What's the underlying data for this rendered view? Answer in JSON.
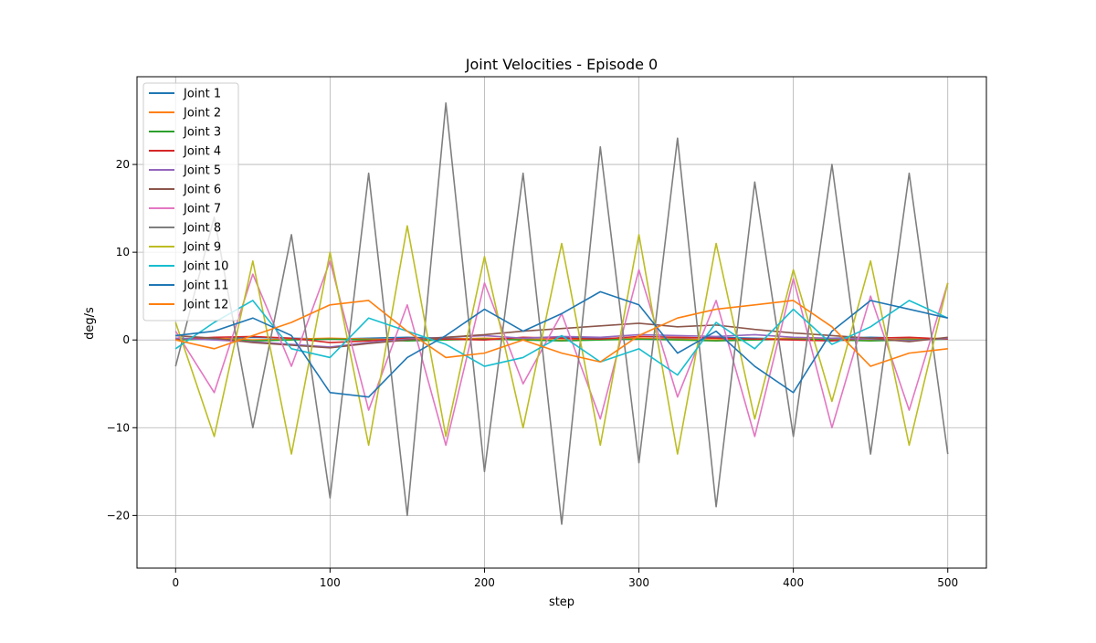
{
  "chart_data": {
    "type": "line",
    "title": "Joint Velocities - Episode 0",
    "xlabel": "step",
    "ylabel": "deg/s",
    "xlim": [
      -25,
      525
    ],
    "ylim": [
      -26,
      30
    ],
    "xticks": [
      0,
      100,
      200,
      300,
      400,
      500
    ],
    "yticks": [
      -20,
      -10,
      0,
      10,
      20
    ],
    "xtick_labels": [
      "0",
      "100",
      "200",
      "300",
      "400",
      "500"
    ],
    "ytick_labels": [
      "−20",
      "−10",
      "0",
      "10",
      "20"
    ],
    "grid": true,
    "legend_position": "upper-left",
    "x": [
      0,
      25,
      50,
      75,
      100,
      125,
      150,
      175,
      200,
      225,
      250,
      275,
      300,
      325,
      350,
      375,
      400,
      425,
      450,
      475,
      500
    ],
    "series": [
      {
        "name": "Joint 1",
        "color": "#1f77b4",
        "values": [
          0.2,
          0.1,
          0.3,
          0.2,
          0.1,
          0.2,
          0.3,
          0.2,
          0.1,
          0.2,
          0.3,
          0.2,
          0.1,
          0.2,
          0.3,
          0.2,
          0.1,
          0.2,
          0.3,
          0.2,
          0.1
        ]
      },
      {
        "name": "Joint 2",
        "color": "#ff7f0e",
        "values": [
          0.1,
          0.2,
          0.0,
          0.1,
          0.2,
          0.1,
          0.0,
          0.1,
          0.2,
          0.1,
          0.0,
          0.1,
          0.2,
          0.1,
          0.0,
          0.1,
          0.2,
          0.1,
          0.0,
          0.1,
          0.2
        ]
      },
      {
        "name": "Joint 3",
        "color": "#2ca02c",
        "values": [
          0.0,
          0.1,
          -0.1,
          0.0,
          0.1,
          0.0,
          -0.1,
          0.0,
          0.1,
          0.0,
          -0.1,
          0.0,
          0.1,
          0.0,
          -0.1,
          0.0,
          0.1,
          0.0,
          -0.1,
          0.0,
          0.1
        ]
      },
      {
        "name": "Joint 4",
        "color": "#d62728",
        "values": [
          0.1,
          0.3,
          0.4,
          0.2,
          -0.3,
          -0.1,
          0.2,
          0.1,
          0.0,
          0.3,
          0.2,
          0.1,
          0.4,
          0.3,
          0.2,
          0.1,
          0.0,
          -0.1,
          0.2,
          0.3,
          0.1
        ]
      },
      {
        "name": "Joint 5",
        "color": "#9467bd",
        "values": [
          0.2,
          0.0,
          -0.2,
          -0.5,
          -0.8,
          -0.3,
          0.1,
          0.3,
          0.5,
          0.2,
          0.4,
          0.3,
          0.6,
          0.5,
          0.4,
          0.6,
          0.3,
          0.2,
          0.1,
          -0.1,
          0.2
        ]
      },
      {
        "name": "Joint 6",
        "color": "#8c564b",
        "values": [
          0.5,
          0.2,
          -0.3,
          -0.6,
          -0.9,
          -0.4,
          0.0,
          0.3,
          0.6,
          1.0,
          1.3,
          1.6,
          1.9,
          1.5,
          1.7,
          1.2,
          0.8,
          0.5,
          0.2,
          -0.2,
          0.3
        ]
      },
      {
        "name": "Joint 7",
        "color": "#e377c2",
        "values": [
          1.0,
          -6.0,
          7.5,
          -3.0,
          9.0,
          -8.0,
          4.0,
          -12.0,
          6.5,
          -5.0,
          3.0,
          -9.0,
          8.0,
          -6.5,
          4.5,
          -11.0,
          7.0,
          -10.0,
          5.0,
          -8.0,
          6.5
        ]
      },
      {
        "name": "Joint 8",
        "color": "#7f7f7f",
        "values": [
          -3.0,
          14.0,
          -10.0,
          12.0,
          -18.0,
          19.0,
          -20.0,
          27.0,
          -15.0,
          19.0,
          -21.0,
          22.0,
          -14.0,
          23.0,
          -19.0,
          18.0,
          -11.0,
          20.0,
          -13.0,
          19.0,
          -13.0
        ]
      },
      {
        "name": "Joint 9",
        "color": "#bcbd22",
        "values": [
          2.0,
          -11.0,
          9.0,
          -13.0,
          10.0,
          -12.0,
          13.0,
          -11.0,
          9.5,
          -10.0,
          11.0,
          -12.0,
          12.0,
          -13.0,
          11.0,
          -9.0,
          8.0,
          -7.0,
          9.0,
          -12.0,
          6.5
        ]
      },
      {
        "name": "Joint 10",
        "color": "#17becf",
        "values": [
          -1.0,
          2.0,
          4.5,
          -1.0,
          -2.0,
          2.5,
          1.0,
          -0.5,
          -3.0,
          -2.0,
          0.5,
          -2.5,
          -1.0,
          -4.0,
          2.0,
          -1.0,
          3.5,
          -0.5,
          1.5,
          4.5,
          2.5
        ]
      },
      {
        "name": "Joint 11",
        "color": "#1f77b4",
        "values": [
          0.5,
          1.0,
          2.5,
          0.5,
          -6.0,
          -6.5,
          -2.0,
          0.5,
          3.5,
          1.0,
          3.0,
          5.5,
          4.0,
          -1.5,
          1.0,
          -3.0,
          -6.0,
          1.0,
          4.5,
          3.5,
          2.5
        ]
      },
      {
        "name": "Joint 12",
        "color": "#ff7f0e",
        "values": [
          0.0,
          -1.0,
          0.5,
          2.0,
          4.0,
          4.5,
          1.0,
          -2.0,
          -1.5,
          0.0,
          -1.5,
          -2.5,
          0.5,
          2.5,
          3.5,
          4.0,
          4.5,
          1.5,
          -3.0,
          -1.5,
          -1.0
        ]
      }
    ]
  }
}
